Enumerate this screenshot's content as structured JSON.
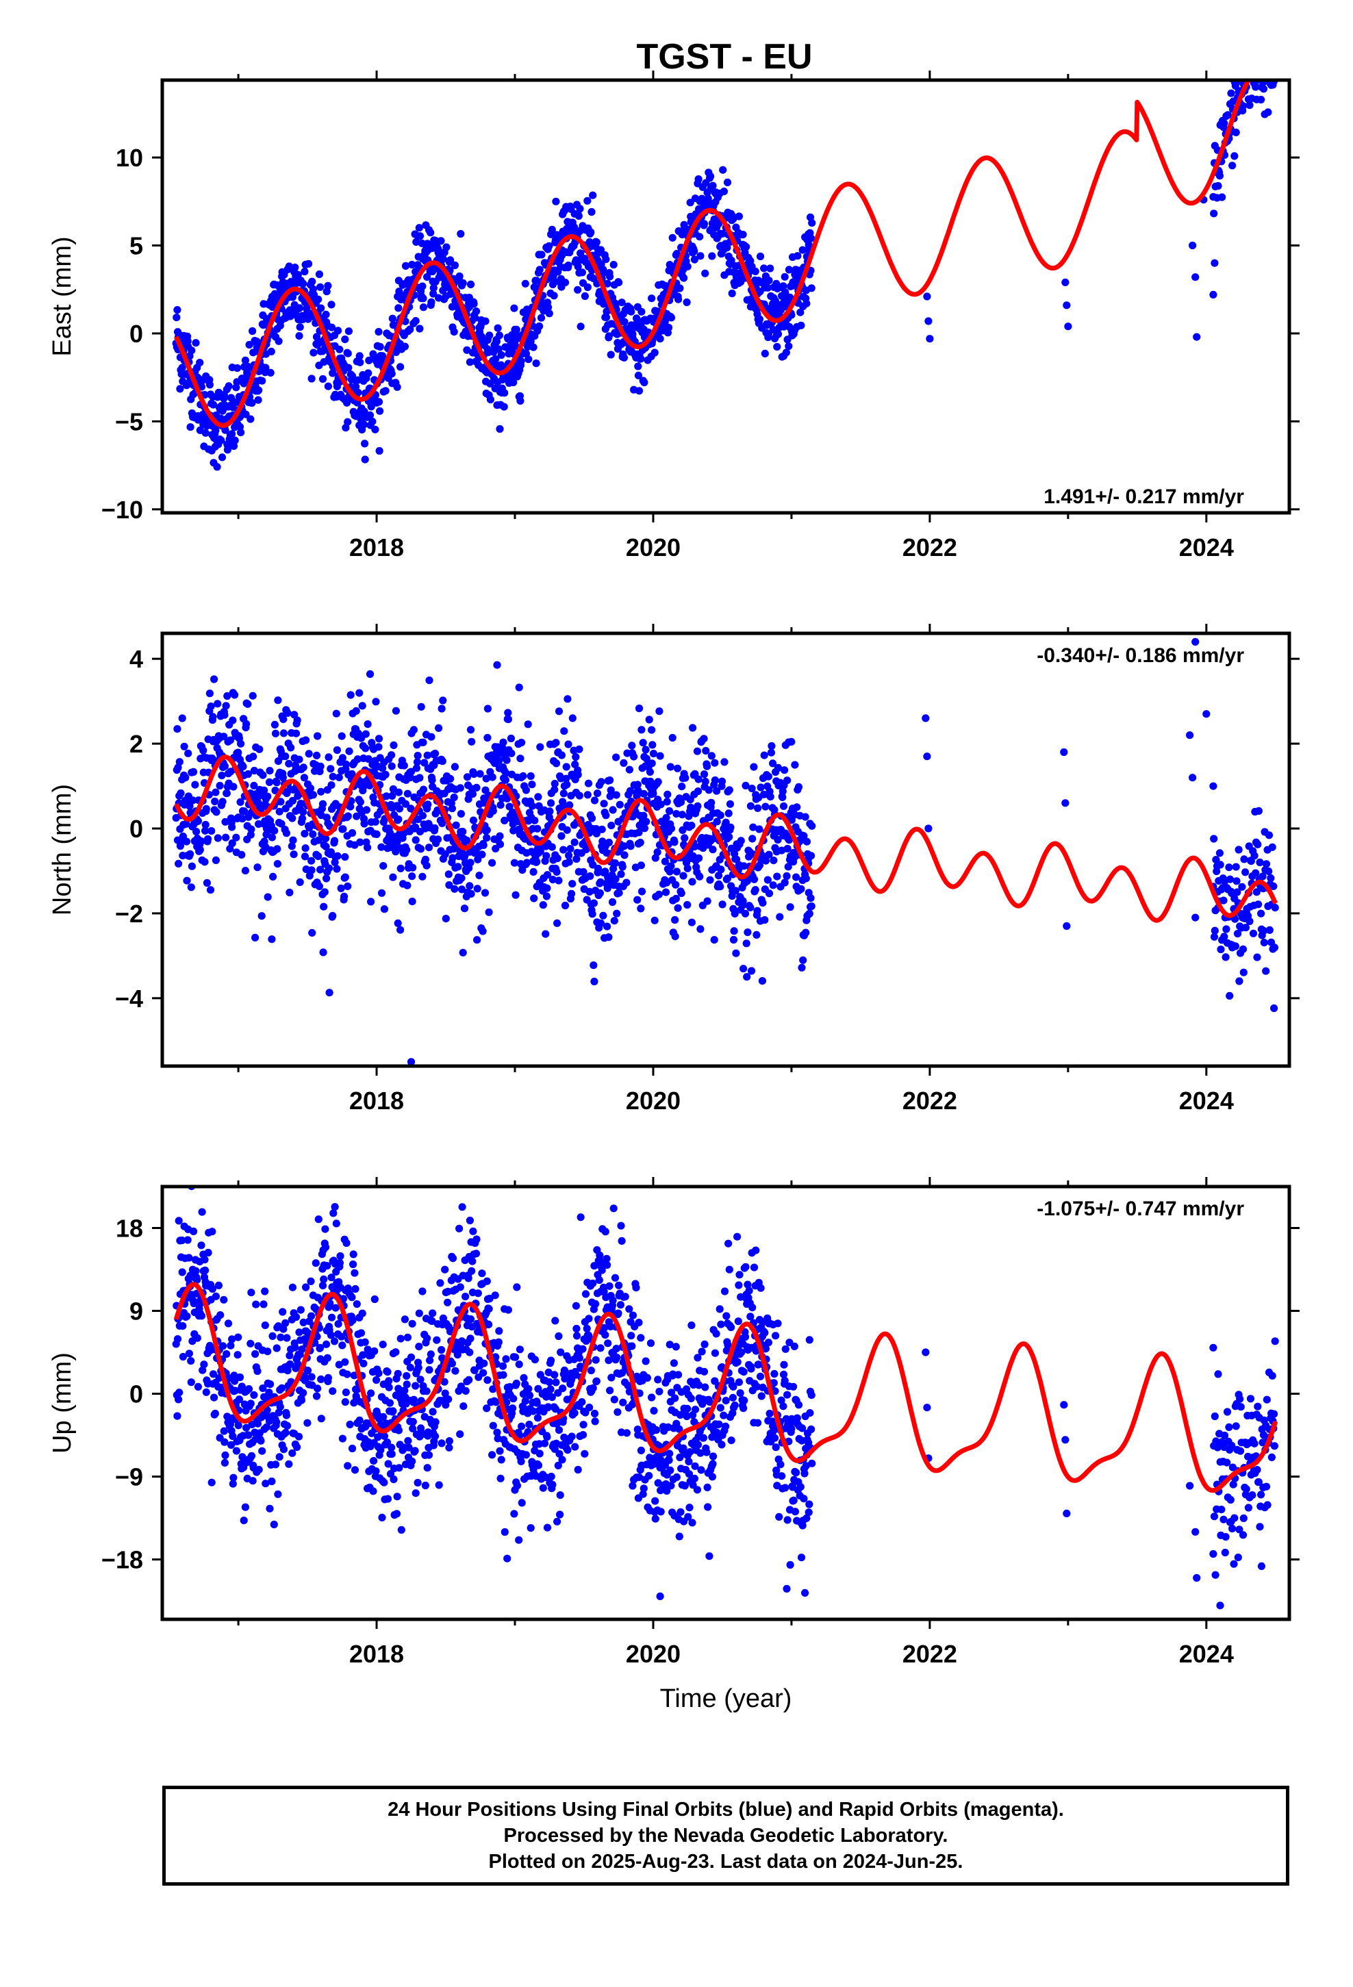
{
  "footer": {
    "line1": "24 Hour Positions Using Final Orbits (blue) and Rapid Orbits (magenta).",
    "line2": "Processed by the Nevada Geodetic Laboratory.",
    "line3": "Plotted on 2025-Aug-23. Last data on 2024-Jun-25."
  },
  "colors": {
    "final_orbits": "#0000ff",
    "fit": "#ff0000",
    "axes": "#000000"
  },
  "chart_data": [
    {
      "type": "scatter",
      "title": "TGST - EU",
      "xlabel": "",
      "ylabel": "East (mm)",
      "xlim": [
        2016.45,
        2024.6
      ],
      "ylim": [
        -10.2,
        14.4
      ],
      "xticks": [
        2018,
        2020,
        2022,
        2024
      ],
      "yticks": [
        -10,
        -5,
        0,
        5,
        10
      ],
      "rate_label": "1.491+/- 0.217 mm/yr",
      "rate_position": "bottom-right",
      "model": {
        "offset": -2.25,
        "rate": 1.491,
        "annual_amp": 3.5,
        "annual_phase": 2017.4,
        "semiannual_amp": 0,
        "semiannual_phase": 2017.0,
        "breaks": [
          {
            "x": 2023.5,
            "step": 2.2
          }
        ],
        "t0": 2016.55
      },
      "point_scatter": 1.2,
      "series": [
        {
          "kind": "points",
          "color": "#0000ff",
          "segments": [
            [
              2016.55,
              2021.15
            ]
          ],
          "spacing": 0.0028,
          "extra": [
            [
              2021.98,
              2.1
            ],
            [
              2021.99,
              0.7
            ],
            [
              2022.0,
              -0.3
            ],
            [
              2022.98,
              2.9
            ],
            [
              2022.99,
              1.6
            ],
            [
              2023.0,
              0.4
            ],
            [
              2023.9,
              5.0
            ],
            [
              2023.92,
              3.2
            ],
            [
              2023.93,
              -0.2
            ],
            [
              2023.98,
              7.6
            ],
            [
              2024.05,
              2.2
            ],
            [
              2024.06,
              4.0
            ]
          ],
          "tail": [
            [
              2024.05,
              2024.5
            ]
          ]
        },
        {
          "kind": "line",
          "name": "",
          "color": "#ff0000",
          "range": [
            2016.55,
            2024.5
          ]
        }
      ]
    },
    {
      "type": "scatter",
      "xlabel": "",
      "ylabel": "North (mm)",
      "xlim": [
        2016.45,
        2024.6
      ],
      "ylim": [
        -5.6,
        4.6
      ],
      "xticks": [
        2018,
        2020,
        2022,
        2024
      ],
      "yticks": [
        -4,
        -2,
        0,
        2,
        4
      ],
      "rate_label": "-0.340+/- 0.186 mm/yr",
      "rate_position": "top-right",
      "model": {
        "offset": 1.0,
        "rate": -0.34,
        "annual_amp": 0.25,
        "annual_phase": 2017.0,
        "semiannual_amp": 0.6,
        "semiannual_phase": 2016.9,
        "breaks": [],
        "t0": 2016.55
      },
      "point_scatter": 1.0,
      "series": [
        {
          "kind": "points",
          "color": "#0000ff",
          "segments": [
            [
              2016.55,
              2021.15
            ]
          ],
          "spacing": 0.0028,
          "extra": [
            [
              2021.97,
              2.6
            ],
            [
              2021.98,
              1.7
            ],
            [
              2021.99,
              0.0
            ],
            [
              2022.97,
              1.8
            ],
            [
              2022.98,
              0.6
            ],
            [
              2022.99,
              -2.3
            ],
            [
              2023.88,
              2.2
            ],
            [
              2023.9,
              1.2
            ],
            [
              2023.92,
              -2.1
            ],
            [
              2023.92,
              4.4
            ],
            [
              2018.25,
              -5.5
            ],
            [
              2024.0,
              2.7
            ],
            [
              2024.05,
              1.0
            ]
          ],
          "tail": [
            [
              2024.05,
              2024.5
            ]
          ]
        },
        {
          "kind": "line",
          "name": "",
          "color": "#ff0000",
          "range": [
            2016.55,
            2024.5
          ]
        }
      ]
    },
    {
      "type": "scatter",
      "xlabel": "Time (year)",
      "ylabel": "Up (mm)",
      "xlim": [
        2016.45,
        2024.6
      ],
      "ylim": [
        -24.5,
        22.5
      ],
      "xticks": [
        2018,
        2020,
        2022,
        2024
      ],
      "yticks": [
        -18,
        -9,
        0,
        9,
        18
      ],
      "rate_label": "-1.075+/- 0.747 mm/yr",
      "rate_position": "top-right",
      "model": {
        "offset": 3.5,
        "rate": -1.075,
        "annual_amp": 6.5,
        "annual_phase": 2016.65,
        "semiannual_amp": 2.2,
        "semiannual_phase": 2016.7,
        "breaks": [],
        "t0": 2016.55
      },
      "point_scatter": 5.0,
      "series": [
        {
          "kind": "points",
          "color": "#0000ff",
          "segments": [
            [
              2016.55,
              2021.15
            ]
          ],
          "spacing": 0.0028,
          "extra": [
            [
              2021.97,
              4.5
            ],
            [
              2021.98,
              -1.5
            ],
            [
              2021.99,
              -7.0
            ],
            [
              2022.97,
              -1.2
            ],
            [
              2022.98,
              -5.0
            ],
            [
              2022.99,
              -13.0
            ],
            [
              2023.88,
              -10.0
            ],
            [
              2023.92,
              -15.0
            ],
            [
              2023.93,
              -20.0
            ],
            [
              2020.05,
              -22.0
            ],
            [
              2024.05,
              5.0
            ],
            [
              2024.1,
              -23.0
            ]
          ],
          "tail": [
            [
              2024.05,
              2024.5
            ]
          ]
        },
        {
          "kind": "line",
          "name": "",
          "color": "#ff0000",
          "range": [
            2016.55,
            2024.5
          ]
        }
      ]
    }
  ]
}
